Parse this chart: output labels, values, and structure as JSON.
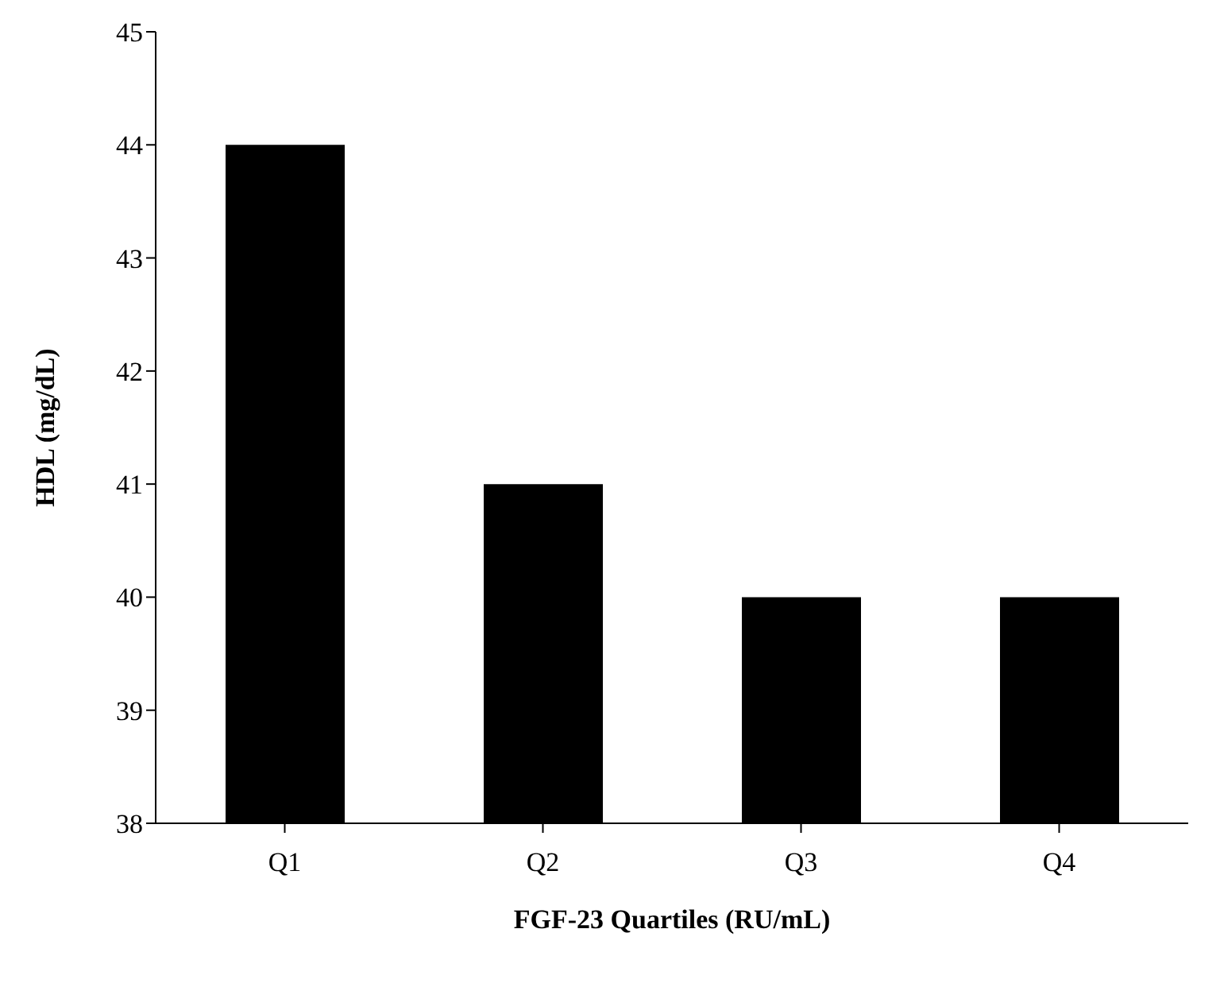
{
  "chart_data": {
    "type": "bar",
    "xlabel": "FGF-23 Quartiles (RU/mL)",
    "ylabel": "HDL (mg/dL)",
    "categories": [
      "Q1",
      "Q2",
      "Q3",
      "Q4"
    ],
    "values": [
      44,
      41,
      40,
      40
    ],
    "color": "#000000",
    "ylim": [
      38,
      45
    ],
    "yticks": [
      38,
      39,
      40,
      41,
      42,
      43,
      44,
      45
    ]
  }
}
